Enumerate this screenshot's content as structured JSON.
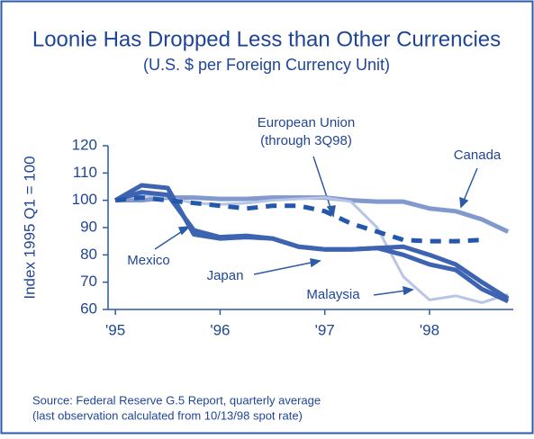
{
  "chart_data": {
    "type": "line",
    "title": "Loonie Has Dropped Less than Other Currencies",
    "subtitle": "(U.S. $ per Foreign Currency Unit)",
    "y_label": "Index 1995 Q1 = 100",
    "x": [
      1995,
      1995.25,
      1995.5,
      1995.75,
      1996,
      1996.25,
      1996.5,
      1996.75,
      1997,
      1997.25,
      1997.5,
      1997.75,
      1998,
      1998.25,
      1998.5,
      1998.75
    ],
    "series": [
      {
        "name": "Canada",
        "color": "#8199cc",
        "width": 5,
        "values": [
          100,
          100,
          101,
          101,
          100.5,
          100.5,
          101,
          101,
          101,
          100,
          99.5,
          99.5,
          97,
          96,
          93,
          88.5
        ]
      },
      {
        "name": "Malaysia",
        "color": "#b8c5e5",
        "width": 3,
        "values": [
          100,
          102,
          101,
          99,
          98.5,
          99,
          100,
          100.5,
          101,
          99.5,
          90,
          72,
          63.5,
          65,
          62.5,
          65.5
        ]
      },
      {
        "name": "Japan",
        "color": "#3d64b1",
        "width": 5,
        "values": [
          100,
          103,
          102,
          89,
          86.5,
          87,
          86,
          83,
          82,
          82,
          82.5,
          83,
          80,
          76.5,
          70,
          64
        ]
      },
      {
        "name": "Mexico",
        "color": "#3d64b1",
        "width": 5,
        "values": [
          100,
          105.5,
          104.5,
          87.5,
          86,
          86.5,
          86,
          83,
          82,
          82,
          82.5,
          80,
          76.5,
          74.5,
          67.5,
          63
        ]
      },
      {
        "name": [
          "European Union",
          "(through 3Q98)"
        ],
        "color": "#2458ab",
        "width": 5,
        "dash": "12 9",
        "values": [
          100,
          101,
          100,
          99,
          98,
          97,
          98,
          98,
          96,
          91.5,
          88.5,
          85.5,
          85,
          85,
          85.5,
          null
        ]
      }
    ],
    "xlim": [
      1994.93,
      1998.8
    ],
    "xticks": [
      {
        "value": 1995,
        "label": "'95"
      },
      {
        "value": 1996,
        "label": "'96"
      },
      {
        "value": 1997,
        "label": "'97"
      },
      {
        "value": 1998,
        "label": "'98"
      }
    ],
    "ylim": [
      60,
      120
    ],
    "yticks": [
      60,
      70,
      80,
      90,
      100,
      110,
      120
    ],
    "source": [
      "Source: Federal Reserve G.5 Report, quarterly average",
      "(last observation calculated from 10/13/98 spot rate)"
    ]
  }
}
